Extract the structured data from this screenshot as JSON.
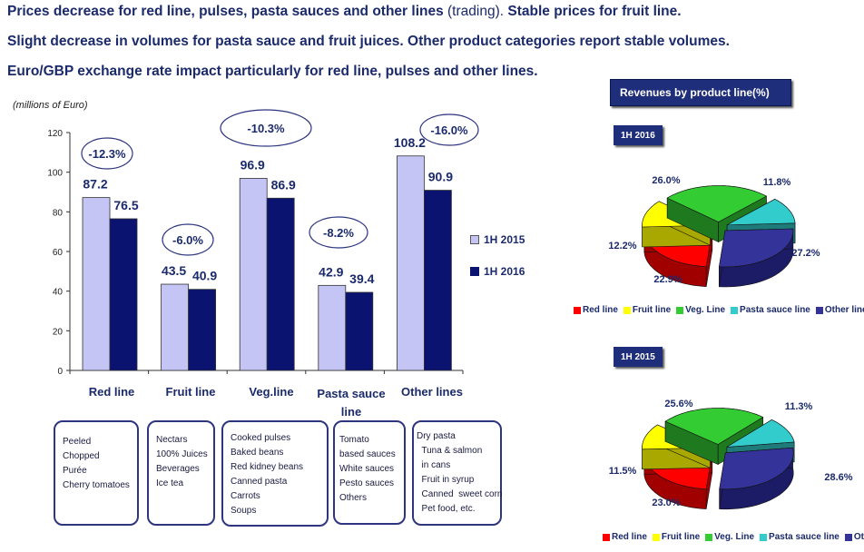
{
  "headlines": {
    "line1_bold": "Prices decrease for red line, pulses, pasta sauces and other lines",
    "line1_normal": " (trading).",
    "line1_bold2": " Stable prices for fruit line.",
    "line2": "Slight decrease in volumes for pasta sauce and fruit juices. Other product categories report stable volumes.",
    "line3": "Euro/GBP exchange rate impact particularly for red line, pulses and other lines."
  },
  "units_label": "(millions of Euro)",
  "chart_data": [
    {
      "type": "bar",
      "title": "",
      "ylabel": "(millions of Euro)",
      "ylim": [
        0,
        120
      ],
      "yticks": [
        "0",
        "20",
        "40",
        "60",
        "80",
        "100",
        "120"
      ],
      "categories": [
        "Red line",
        "Fruit line",
        "Veg.line",
        "Pasta sauce line",
        "Other lines"
      ],
      "series": [
        {
          "name": "1H 2015",
          "values": [
            87.2,
            43.5,
            96.9,
            42.9,
            108.2
          ],
          "labels": [
            "87.2",
            "43.5",
            "96.9",
            "42.9",
            "108.2"
          ],
          "color": "#c4c4f5"
        },
        {
          "name": "1H 2016",
          "values": [
            76.5,
            40.9,
            86.9,
            39.4,
            90.9
          ],
          "labels": [
            "76.5",
            "40.9",
            "86.9",
            "39.4",
            "90.9"
          ],
          "color": "#0b1370"
        }
      ],
      "annotations": [
        "-12.3%",
        "-6.0%",
        "-10.3%",
        "-8.2%",
        "-16.0%"
      ],
      "legend": "right"
    },
    {
      "type": "pie",
      "title": "1H 2016",
      "labels": [
        "Red line",
        "Fruit line",
        "Veg. Line",
        "Pasta sauce line",
        "Other lines"
      ],
      "values": [
        22.9,
        12.2,
        26.0,
        11.8,
        27.2
      ],
      "value_labels": [
        "22.9%",
        "12.2%",
        "26.0%",
        "11.8%",
        "27.2%"
      ]
    },
    {
      "type": "pie",
      "title": "1H 2015",
      "labels": [
        "Red line",
        "Fruit line",
        "Veg. Line",
        "Pasta sauce line",
        "Other lines"
      ],
      "values": [
        23.0,
        11.5,
        25.6,
        11.3,
        28.6
      ],
      "value_labels": [
        "23.0%",
        "11.5%",
        "25.6%",
        "11.3%",
        "28.6%"
      ]
    }
  ],
  "category_labels": {
    "red": "Red line",
    "fruit": "Fruit line",
    "veg": "Veg.line",
    "pasta_l1": "Pasta sauce",
    "pasta_l2": "line",
    "other": "Other lines"
  },
  "legend": {
    "s2015": "1H 2015",
    "s2016": "1H 2016"
  },
  "product_boxes": {
    "red": [
      "Peeled",
      "Chopped",
      "Purée",
      "Cherry tomatoes"
    ],
    "fruit": [
      "Nectars",
      "100% Juices",
      "Beverages",
      "Ice tea"
    ],
    "veg": [
      "Cooked pulses",
      "Baked beans",
      "Red kidney beans",
      "Canned pasta",
      "Carrots",
      "Soups"
    ],
    "pasta": [
      "Tomato",
      "based sauces",
      "White sauces",
      "Pesto sauces",
      "Others"
    ],
    "other": [
      "Dry pasta",
      "  Tuna & salmon",
      "  in cans",
      "  Fruit in syrup",
      "  Canned  sweet corn",
      "  Pet food, etc."
    ]
  },
  "revenues_title": "Revenues by product line(%)",
  "pie_legend": [
    "Red line",
    "Fruit line",
    "Veg. Line",
    "Pasta sauce line",
    "Other lines"
  ],
  "pie_colors": {
    "red": "#ff0000",
    "fruit": "#ffff00",
    "veg": "#33cc33",
    "pasta": "#33cccc",
    "other": "#333399"
  }
}
